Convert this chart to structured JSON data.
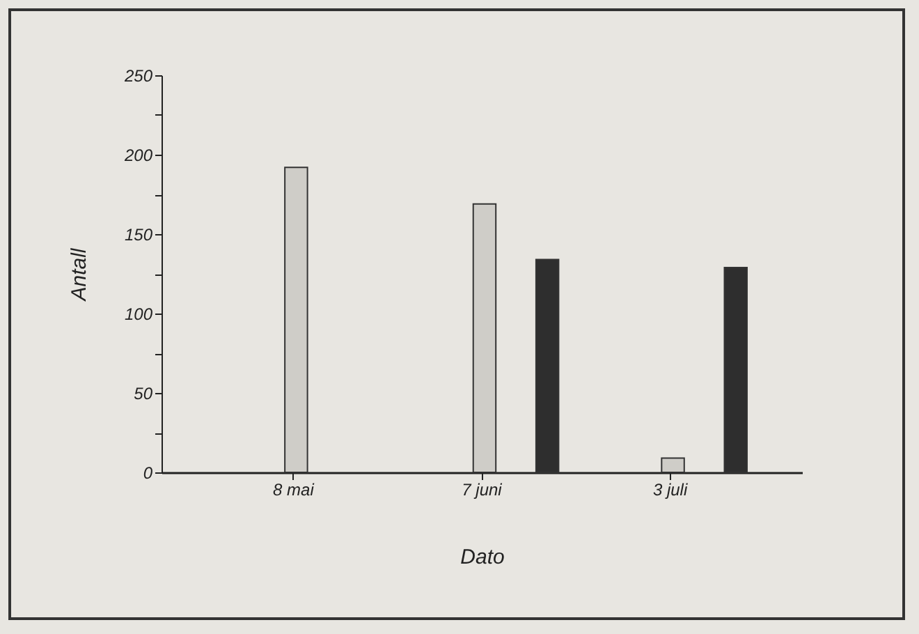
{
  "chart_data": {
    "type": "bar",
    "xlabel": "Dato",
    "ylabel": "Antall",
    "categories": [
      "8 mai",
      "7 juni",
      "3 juli"
    ],
    "series": [
      {
        "color": "#cfcdc8",
        "values": [
          192,
          169,
          9
        ]
      },
      {
        "color": "#2e2e2e",
        "values": [
          null,
          134,
          129
        ]
      }
    ],
    "ylim": [
      0,
      250
    ],
    "yticks": [
      0,
      {
        "value": 25,
        "label": null
      },
      50,
      {
        "value": 75,
        "label": null
      },
      100,
      {
        "value": 125,
        "label": null
      },
      150,
      {
        "value": 175,
        "label": null
      },
      200,
      {
        "value": 225,
        "label": null
      },
      250
    ],
    "grid": false,
    "legend": false
  }
}
